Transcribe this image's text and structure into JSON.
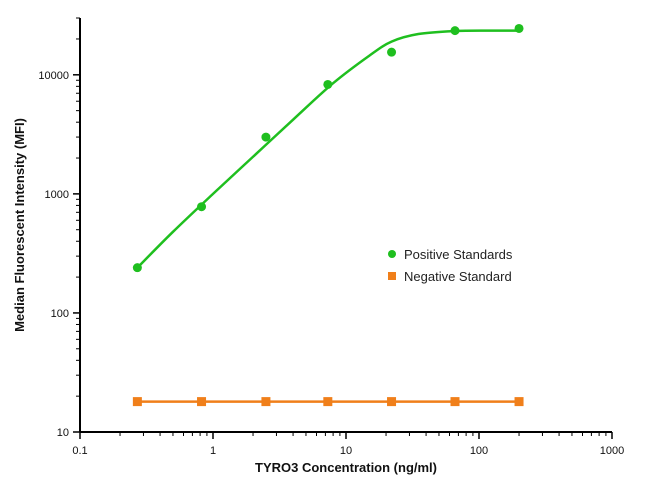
{
  "chart_data": {
    "type": "scatter",
    "xlabel": "TYRO3 Concentration (ng/ml)",
    "ylabel": "Median Fluorescent Intensity (MFI)",
    "xscale": "log",
    "yscale": "log",
    "xlim": [
      0.1,
      1000
    ],
    "ylim": [
      10,
      30000
    ],
    "x_ticks": [
      0.1,
      1,
      10,
      100,
      1000
    ],
    "x_tick_labels": [
      "0.1",
      "1",
      "10",
      "100",
      "1000"
    ],
    "y_ticks": [
      10,
      100,
      1000,
      10000
    ],
    "y_tick_labels": [
      "10",
      "100",
      "1000",
      "10000"
    ],
    "grid": false,
    "legend_position": "center-right",
    "series": [
      {
        "name": "Positive Standards",
        "color": "#1fbf1f",
        "marker": "circle",
        "fit_curve": true,
        "x": [
          0.27,
          0.82,
          2.5,
          7.3,
          22,
          66,
          200
        ],
        "y": [
          240,
          780,
          3000,
          8300,
          15500,
          23500,
          24500
        ],
        "curve_x": [
          0.27,
          0.5,
          1,
          2,
          4,
          8,
          15,
          22,
          35,
          66,
          120,
          200
        ],
        "curve_y": [
          240,
          480,
          1000,
          2050,
          4200,
          8500,
          14500,
          19000,
          22000,
          23300,
          23500,
          23500
        ]
      },
      {
        "name": "Negative Standard",
        "color": "#f07f1a",
        "marker": "square",
        "fit_curve": false,
        "x": [
          0.27,
          0.82,
          2.5,
          7.3,
          22,
          66,
          200
        ],
        "y": [
          18,
          18,
          18,
          18,
          18,
          18,
          18
        ]
      }
    ]
  }
}
